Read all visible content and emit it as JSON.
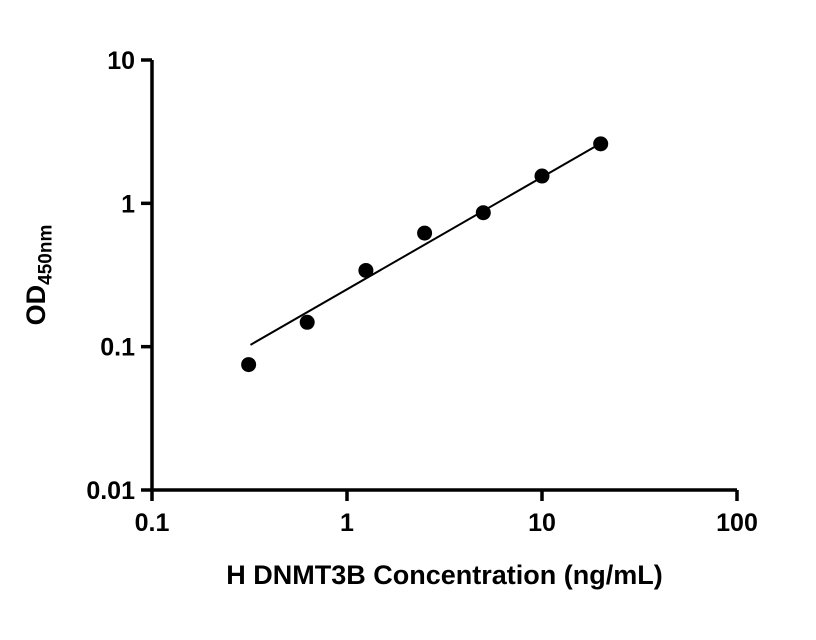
{
  "figure": {
    "background": "#ffffff"
  },
  "chart_data": {
    "type": "scatter",
    "title": "",
    "xlabel": "H DNMT3B Concentration (ng/mL)",
    "ylabel_main": "OD",
    "ylabel_sub": "450nm",
    "x_scale": "log",
    "y_scale": "log",
    "xlim": [
      0.1,
      100
    ],
    "ylim": [
      0.01,
      10
    ],
    "x_ticks": [
      0.1,
      1,
      10,
      100
    ],
    "x_tick_labels": [
      "0.1",
      "1",
      "10",
      "100"
    ],
    "y_ticks": [
      0.01,
      0.1,
      1,
      10
    ],
    "y_tick_labels": [
      "0.01",
      "0.1",
      "1",
      "10"
    ],
    "grid": false,
    "legend": "none",
    "axis_color": "#000000",
    "marker_color": "#000000",
    "line_color": "#000000",
    "points": [
      {
        "x": 0.313,
        "y": 0.075
      },
      {
        "x": 0.625,
        "y": 0.148
      },
      {
        "x": 1.25,
        "y": 0.34
      },
      {
        "x": 2.5,
        "y": 0.62
      },
      {
        "x": 5,
        "y": 0.86
      },
      {
        "x": 10,
        "y": 1.55
      },
      {
        "x": 20,
        "y": 2.6
      }
    ],
    "trendline": [
      {
        "x": 0.32,
        "y": 0.103
      },
      {
        "x": 20,
        "y": 2.62
      }
    ]
  }
}
